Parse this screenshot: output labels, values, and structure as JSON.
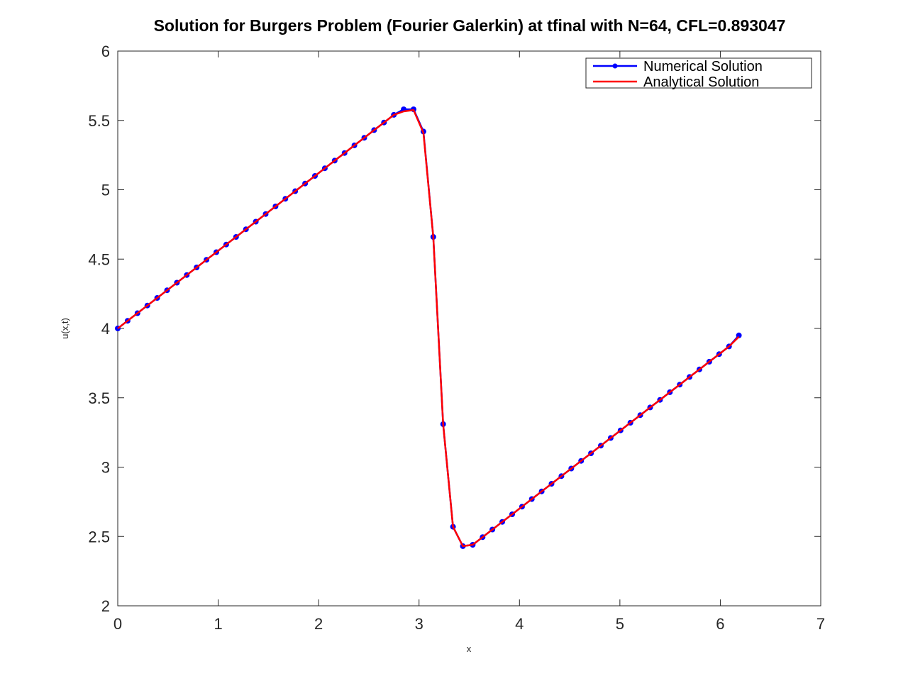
{
  "chart_data": {
    "type": "line",
    "title": "Solution for Burgers Problem (Fourier Galerkin) at tfinal with N=64, CFL=0.893047",
    "xlabel": "x",
    "ylabel": "u(x,t)",
    "xlim": [
      0,
      7
    ],
    "ylim": [
      2,
      6
    ],
    "xticks": [
      "0",
      "1",
      "2",
      "3",
      "4",
      "5",
      "6",
      "7"
    ],
    "yticks": [
      "2",
      "2.5",
      "3",
      "3.5",
      "4",
      "4.5",
      "5",
      "5.5",
      "6"
    ],
    "grid": false,
    "legend_position": "top-right",
    "series": [
      {
        "name": "Numerical Solution",
        "color": "#0000ff",
        "marker": "circle",
        "x": [
          0.0,
          0.0982,
          0.1963,
          0.2945,
          0.3927,
          0.4909,
          0.589,
          0.6872,
          0.7854,
          0.8836,
          0.9817,
          1.0799,
          1.1781,
          1.2763,
          1.3744,
          1.4726,
          1.5708,
          1.669,
          1.7671,
          1.8653,
          1.9635,
          2.0617,
          2.1598,
          2.258,
          2.3562,
          2.4544,
          2.5525,
          2.6507,
          2.7489,
          2.8471,
          2.9452,
          3.0434,
          3.1416,
          3.2398,
          3.3379,
          3.4361,
          3.5343,
          3.6325,
          3.7306,
          3.8288,
          3.927,
          4.0252,
          4.1233,
          4.2215,
          4.3197,
          4.4179,
          4.516,
          4.6142,
          4.7124,
          4.8106,
          4.9087,
          5.0069,
          5.1051,
          5.2033,
          5.3014,
          5.3996,
          5.4978,
          5.596,
          5.6941,
          5.7923,
          5.8905,
          5.9887,
          6.0868,
          6.185
        ],
        "y": [
          4.0,
          4.055,
          4.11,
          4.165,
          4.22,
          4.275,
          4.33,
          4.385,
          4.44,
          4.495,
          4.55,
          4.605,
          4.66,
          4.715,
          4.77,
          4.825,
          4.88,
          4.935,
          4.99,
          5.045,
          5.1,
          5.155,
          5.21,
          5.265,
          5.32,
          5.375,
          5.43,
          5.485,
          5.54,
          5.58,
          5.58,
          5.42,
          4.66,
          3.31,
          2.57,
          2.43,
          2.44,
          2.495,
          2.55,
          2.605,
          2.66,
          2.715,
          2.77,
          2.825,
          2.88,
          2.935,
          2.99,
          3.045,
          3.1,
          3.155,
          3.21,
          3.265,
          3.32,
          3.375,
          3.43,
          3.485,
          3.54,
          3.595,
          3.65,
          3.705,
          3.76,
          3.815,
          3.87,
          3.95
        ]
      },
      {
        "name": "Analytical Solution",
        "color": "#ff0000",
        "marker": "none",
        "x": [
          0.0,
          0.0982,
          0.1963,
          0.2945,
          0.3927,
          0.4909,
          0.589,
          0.6872,
          0.7854,
          0.8836,
          0.9817,
          1.0799,
          1.1781,
          1.2763,
          1.3744,
          1.4726,
          1.5708,
          1.669,
          1.7671,
          1.8653,
          1.9635,
          2.0617,
          2.1598,
          2.258,
          2.3562,
          2.4544,
          2.5525,
          2.6507,
          2.7489,
          2.8471,
          2.9452,
          3.0434,
          3.1416,
          3.2398,
          3.3379,
          3.4361,
          3.5343,
          3.6325,
          3.7306,
          3.8288,
          3.927,
          4.0252,
          4.1233,
          4.2215,
          4.3197,
          4.4179,
          4.516,
          4.6142,
          4.7124,
          4.8106,
          4.9087,
          5.0069,
          5.1051,
          5.2033,
          5.3014,
          5.3996,
          5.4978,
          5.596,
          5.6941,
          5.7923,
          5.8905,
          5.9887,
          6.0868,
          6.185
        ],
        "y": [
          4.0,
          4.055,
          4.11,
          4.165,
          4.22,
          4.275,
          4.33,
          4.385,
          4.44,
          4.495,
          4.55,
          4.605,
          4.66,
          4.715,
          4.77,
          4.825,
          4.88,
          4.935,
          4.99,
          5.045,
          5.1,
          5.155,
          5.21,
          5.265,
          5.32,
          5.375,
          5.43,
          5.485,
          5.54,
          5.565,
          5.575,
          5.41,
          4.66,
          3.31,
          2.57,
          2.43,
          2.44,
          2.495,
          2.55,
          2.605,
          2.66,
          2.715,
          2.77,
          2.825,
          2.88,
          2.935,
          2.99,
          3.045,
          3.1,
          3.155,
          3.21,
          3.265,
          3.32,
          3.375,
          3.43,
          3.485,
          3.54,
          3.595,
          3.65,
          3.705,
          3.76,
          3.815,
          3.87,
          3.94
        ]
      }
    ]
  }
}
